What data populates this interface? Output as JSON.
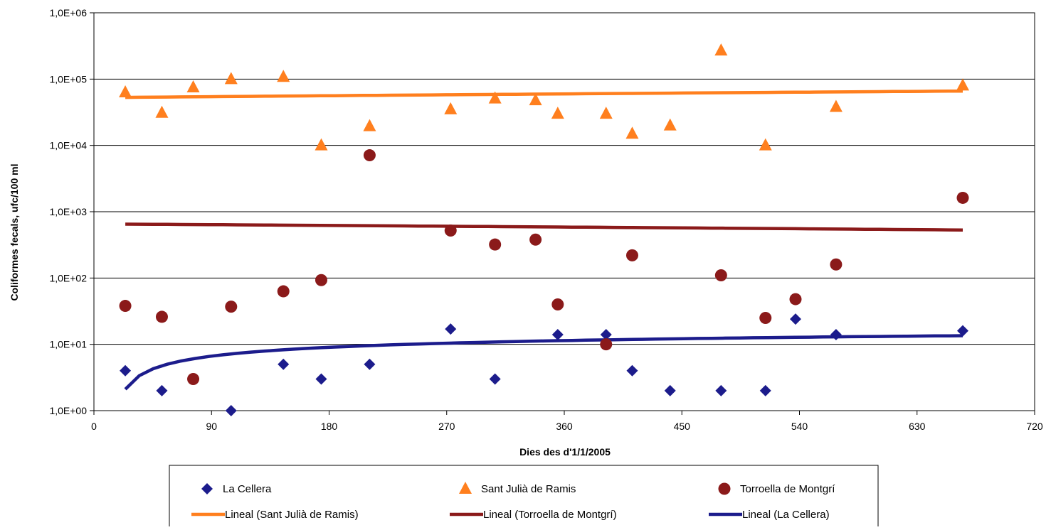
{
  "chart_data": {
    "type": "scatter",
    "title": "",
    "xlabel": "Dies des d'1/1/2005",
    "ylabel": "Coliformes fecals, ufc/100 ml",
    "xlim": [
      0,
      720
    ],
    "xticks": [
      0,
      90,
      180,
      270,
      360,
      450,
      540,
      630,
      720
    ],
    "ylim": [
      1,
      1000000
    ],
    "yscale": "log",
    "ytick_labels": [
      "1,0E+00",
      "1,0E+01",
      "1,0E+02",
      "1,0E+03",
      "1,0E+04",
      "1,0E+05",
      "1,0E+06"
    ],
    "grid": "horizontal",
    "legend_position": "bottom",
    "series": [
      {
        "name": "La Cellera",
        "marker": "diamond",
        "color": "#1c1c8c",
        "points": [
          [
            24,
            4
          ],
          [
            52,
            2
          ],
          [
            76,
            3
          ],
          [
            105,
            1
          ],
          [
            145,
            5
          ],
          [
            174,
            3
          ],
          [
            211,
            5
          ],
          [
            273,
            17
          ],
          [
            307,
            3
          ],
          [
            355,
            14
          ],
          [
            392,
            14
          ],
          [
            412,
            4
          ],
          [
            441,
            2
          ],
          [
            480,
            2
          ],
          [
            514,
            2
          ],
          [
            537,
            24
          ],
          [
            568,
            14
          ],
          [
            665,
            16
          ]
        ]
      },
      {
        "name": "Sant Julià de Ramis",
        "marker": "triangle",
        "color": "#ff7f1e",
        "points": [
          [
            24,
            63000
          ],
          [
            52,
            31000
          ],
          [
            76,
            75000
          ],
          [
            105,
            100000
          ],
          [
            145,
            108000
          ],
          [
            174,
            10000
          ],
          [
            211,
            19500
          ],
          [
            273,
            35000
          ],
          [
            307,
            51000
          ],
          [
            338,
            48000
          ],
          [
            355,
            30000
          ],
          [
            392,
            30000
          ],
          [
            412,
            15000
          ],
          [
            441,
            20000
          ],
          [
            480,
            270000
          ],
          [
            514,
            10000
          ],
          [
            568,
            38000
          ],
          [
            665,
            80000
          ]
        ]
      },
      {
        "name": "Torroella de Montgrí",
        "marker": "circle",
        "color": "#8b1a1a",
        "points": [
          [
            24,
            38
          ],
          [
            52,
            26
          ],
          [
            76,
            3
          ],
          [
            105,
            37
          ],
          [
            145,
            63
          ],
          [
            174,
            93
          ],
          [
            211,
            7100
          ],
          [
            273,
            520
          ],
          [
            307,
            320
          ],
          [
            338,
            380
          ],
          [
            355,
            40
          ],
          [
            392,
            10
          ],
          [
            412,
            220
          ],
          [
            480,
            110
          ],
          [
            514,
            25
          ],
          [
            537,
            48
          ],
          [
            568,
            160
          ],
          [
            665,
            1620
          ]
        ]
      },
      {
        "name": "Lineal (Sant Julià de Ramis)",
        "type": "trendline",
        "color": "#ff7f1e",
        "from": [
          24,
          53000
        ],
        "to": [
          665,
          66000
        ]
      },
      {
        "name": "Lineal (Torroella de Montgrí)",
        "type": "trendline",
        "color": "#8b1a1a",
        "from": [
          24,
          650
        ],
        "to": [
          665,
          530
        ]
      },
      {
        "name": "Lineal (La Cellera)",
        "type": "trendline",
        "shape": "logarithmic",
        "color": "#1c1c8c",
        "from": [
          24,
          2.1
        ],
        "to": [
          665,
          13.5
        ]
      }
    ],
    "legend_order": [
      "La Cellera",
      "Sant Julià de Ramis",
      "Torroella de Montgrí",
      "Lineal (Sant Julià de Ramis)",
      "Lineal (Torroella de Montgrí)",
      "Lineal (La Cellera)"
    ]
  }
}
